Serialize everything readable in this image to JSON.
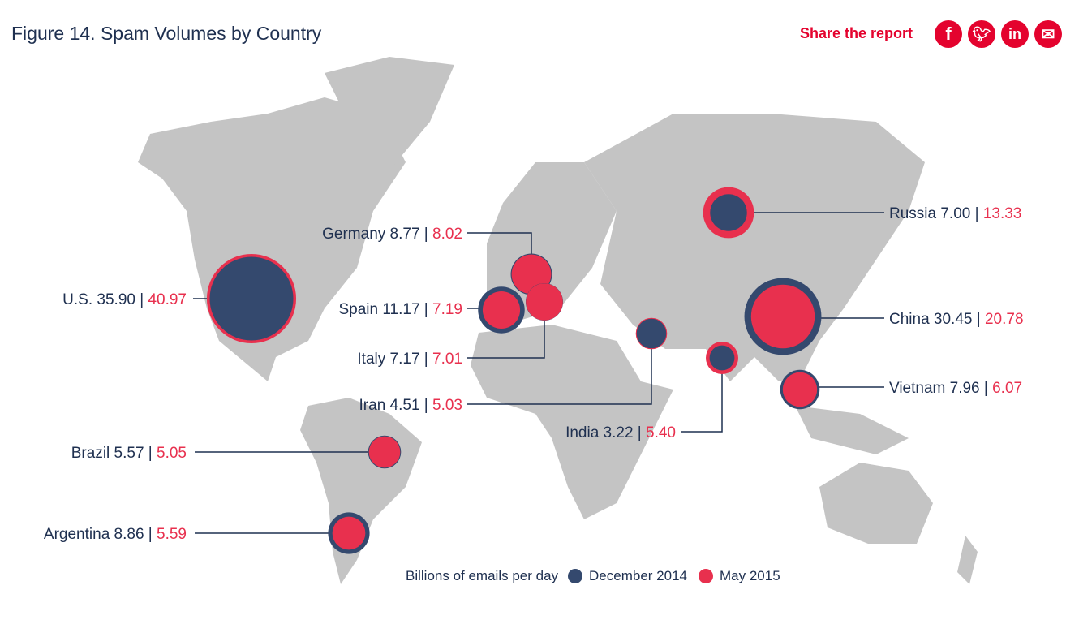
{
  "title": "Figure 14. Spam Volumes by Country",
  "share": {
    "label": "Share the report",
    "icons": [
      "facebook-icon",
      "twitter-icon",
      "linkedin-icon",
      "email-icon"
    ]
  },
  "colors": {
    "dec": "#34496e",
    "may": "#e8304e",
    "map": "#c4c4c4",
    "line": "#1f3050"
  },
  "chart_data": {
    "type": "bubble-map",
    "title": "Figure 14. Spam Volumes by Country",
    "unit": "Billions of emails per day",
    "legend": [
      {
        "name": "December 2014",
        "color": "#34496e"
      },
      {
        "name": "May 2015",
        "color": "#e8304e"
      }
    ],
    "legend_position": "bottom",
    "countries": [
      {
        "name": "U.S.",
        "dec": "35.90",
        "may": "40.97"
      },
      {
        "name": "Germany",
        "dec": "8.77",
        "may": "8.02"
      },
      {
        "name": "Spain",
        "dec": "11.17",
        "may": "7.19"
      },
      {
        "name": "Italy",
        "dec": "7.17",
        "may": "7.01"
      },
      {
        "name": "Iran",
        "dec": "4.51",
        "may": "5.03"
      },
      {
        "name": "India",
        "dec": "3.22",
        "may": "5.40"
      },
      {
        "name": "Brazil",
        "dec": "5.57",
        "may": "5.05"
      },
      {
        "name": "Argentina",
        "dec": "8.86",
        "may": "5.59"
      },
      {
        "name": "Russia",
        "dec": "7.00",
        "may": "13.33"
      },
      {
        "name": "China",
        "dec": "30.45",
        "may": "20.78"
      },
      {
        "name": "Vietnam",
        "dec": "7.96",
        "may": "6.07"
      }
    ]
  }
}
